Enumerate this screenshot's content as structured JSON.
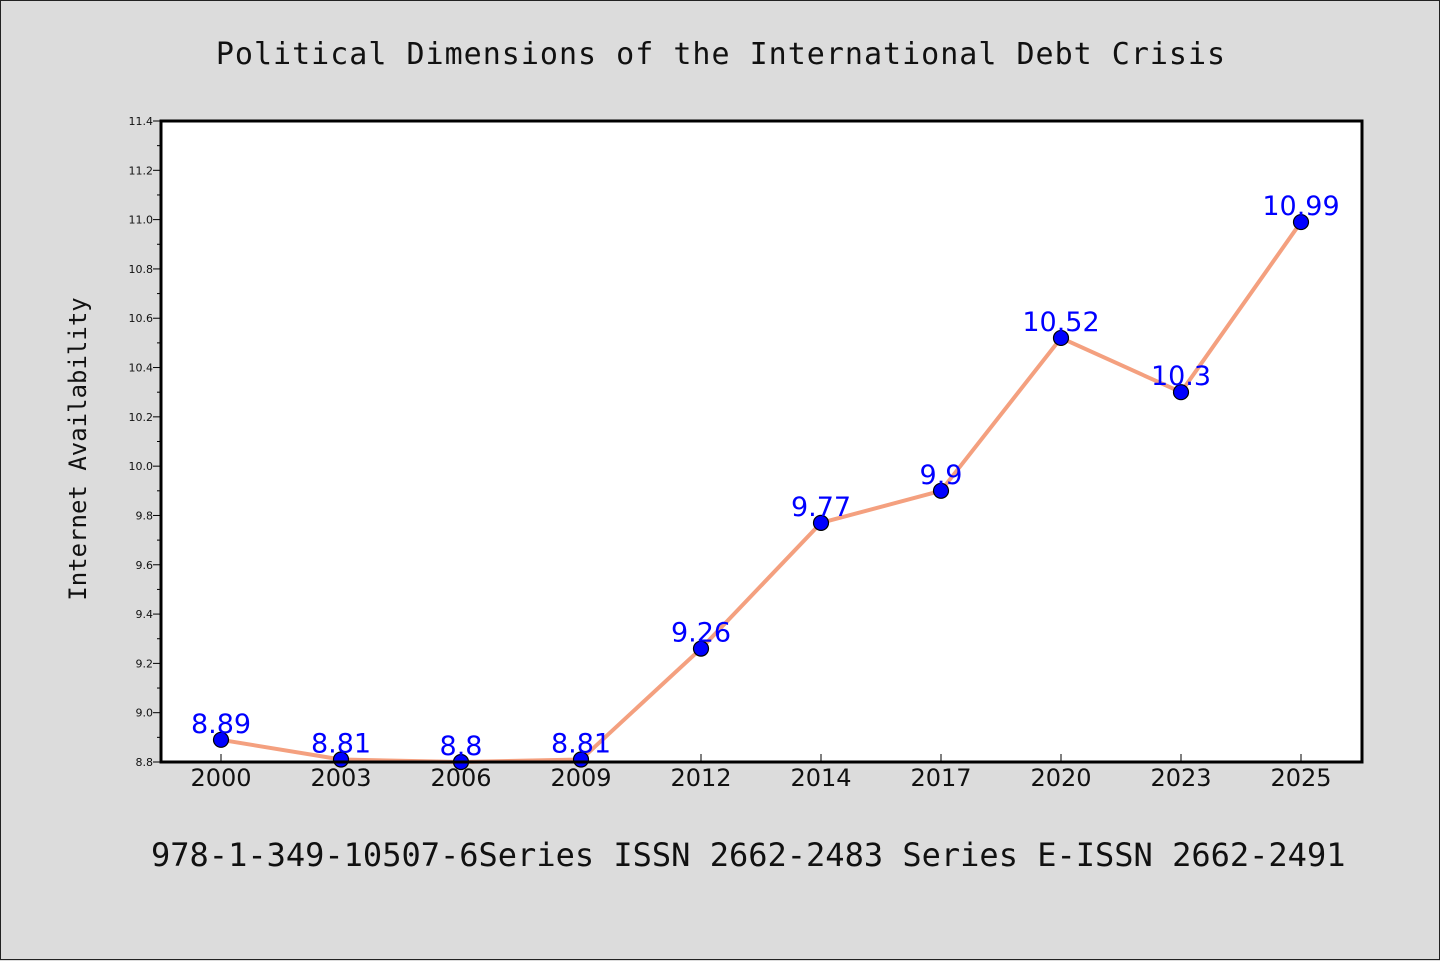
{
  "chart_data": {
    "type": "line",
    "title": "Political Dimensions of the International Debt Crisis",
    "xlabel": "",
    "ylabel": "Internet Availability",
    "categories": [
      "2000",
      "2003",
      "2006",
      "2009",
      "2012",
      "2014",
      "2017",
      "2020",
      "2023",
      "2025"
    ],
    "values": [
      8.89,
      8.81,
      8.8,
      8.81,
      9.26,
      9.77,
      9.9,
      10.52,
      10.3,
      10.99
    ],
    "data_labels": [
      "8.89",
      "8.81",
      "8.8",
      "8.81",
      "9.26",
      "9.77",
      "9.9",
      "10.52",
      "10.3",
      "10.99"
    ],
    "ylim": [
      8.8,
      11.4
    ],
    "yticks": [
      "8.8",
      "9.0",
      "9.2",
      "9.4",
      "9.6",
      "9.8",
      "10.0",
      "10.2",
      "10.4",
      "10.6",
      "10.8",
      "11.0",
      "11.2",
      "11.4"
    ],
    "grid": false,
    "legend": "none",
    "colors": {
      "line": "#f4a07f",
      "marker": "#0000ff",
      "label": "#0000ff",
      "background": "#dcdcdc",
      "plot_background": "#ffffff"
    }
  },
  "footer": {
    "text": "978-1-349-10507-6Series ISSN 2662-2483 Series E-ISSN 2662-2491"
  }
}
